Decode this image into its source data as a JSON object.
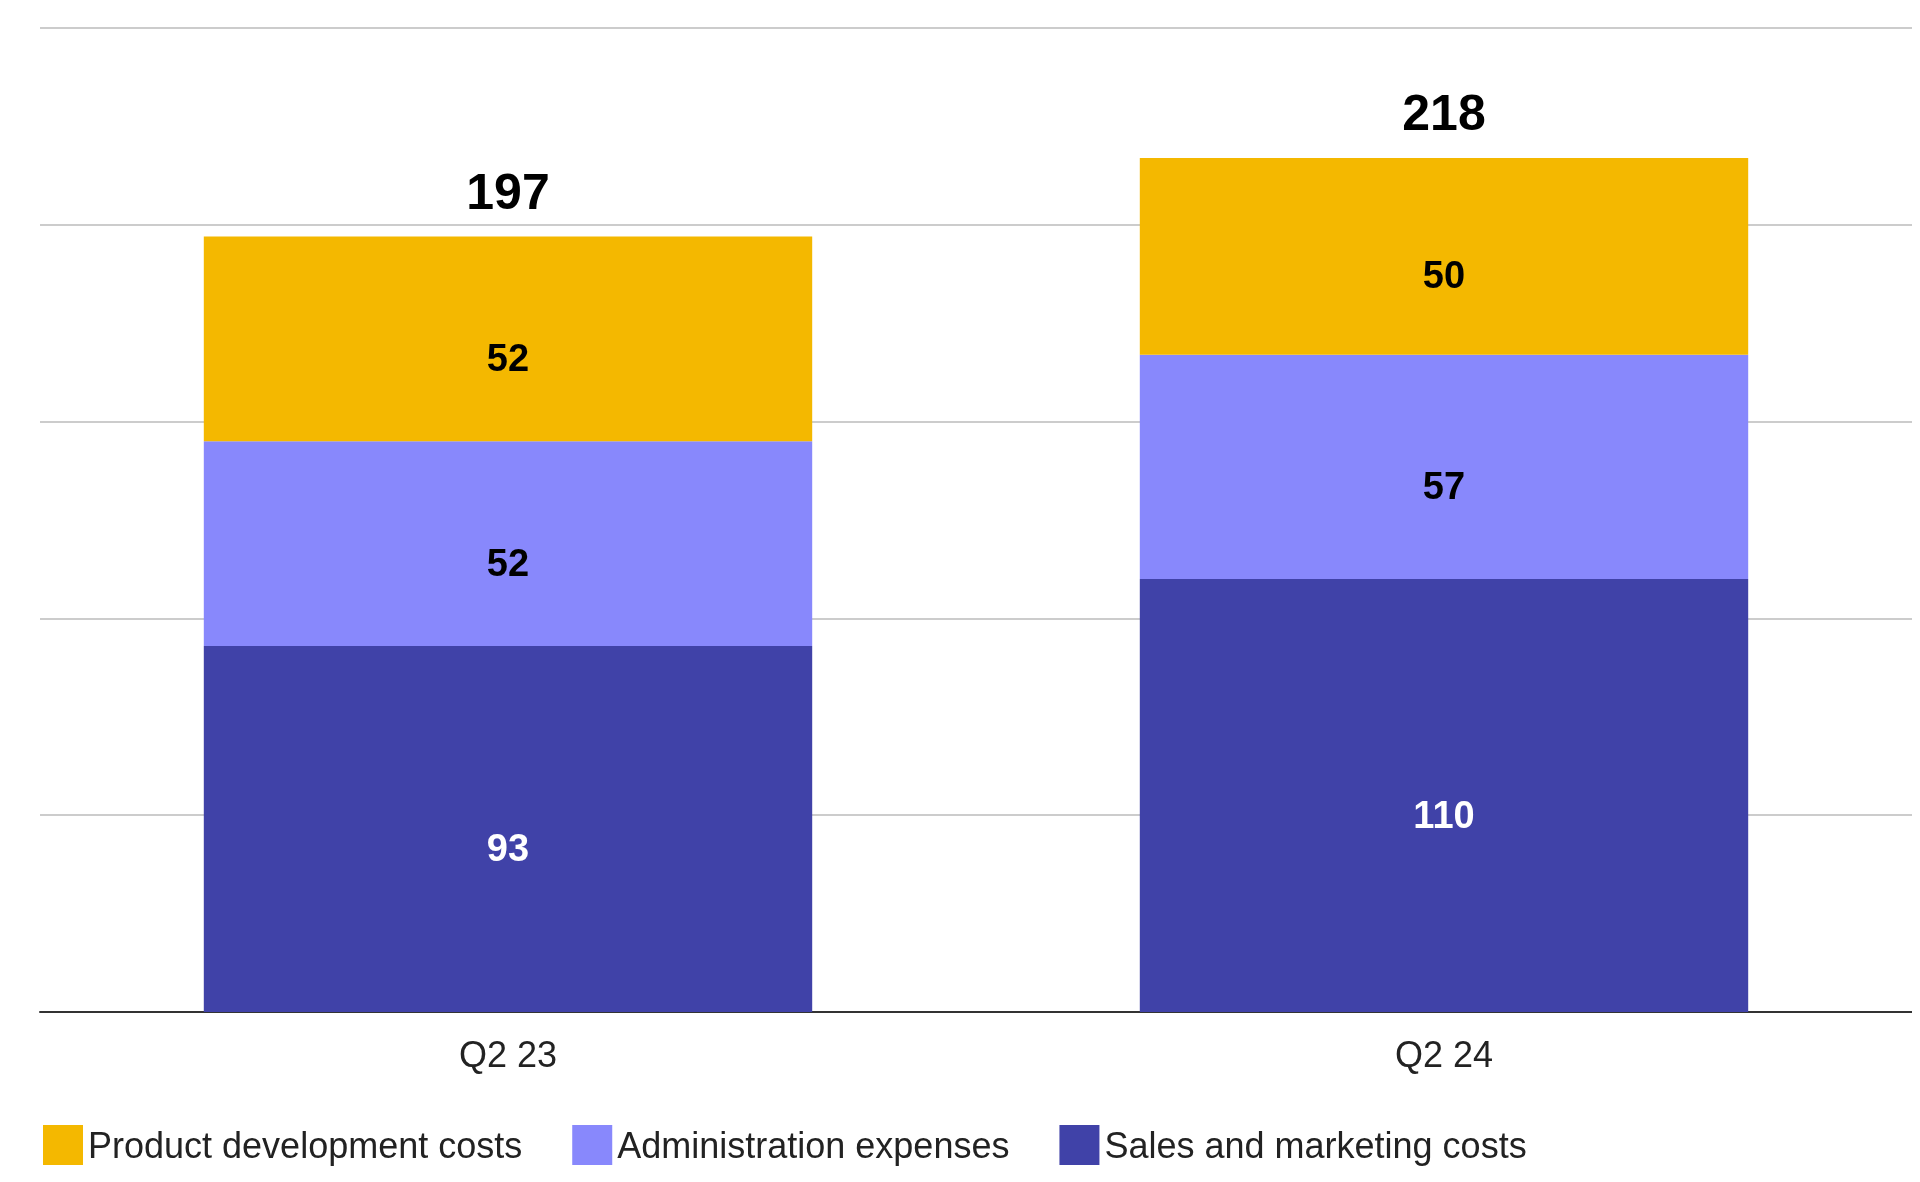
{
  "chart_data": {
    "type": "bar",
    "stacked": true,
    "categories": [
      "Q2 23",
      "Q2 24"
    ],
    "series": [
      {
        "name": "Sales and marketing costs",
        "color": "#4042a8",
        "values": [
          93,
          110
        ]
      },
      {
        "name": "Administration expenses",
        "color": "#8888fc",
        "values": [
          52,
          57
        ]
      },
      {
        "name": "Product development costs",
        "color": "#f4b800",
        "values": [
          52,
          50
        ]
      }
    ],
    "ylim": [
      0,
      250
    ],
    "yticks": [
      {
        "value": 0,
        "label": null
      },
      {
        "value": 50,
        "label": null
      },
      {
        "value": 100,
        "label": null
      },
      {
        "value": 150,
        "label": null
      },
      {
        "value": 200,
        "label": null
      },
      {
        "value": 250,
        "label": null
      }
    ],
    "tick_labels": "x",
    "grid": "y",
    "legend": "bottom left",
    "data_labels": true,
    "totals": [
      "197",
      "218"
    ]
  }
}
